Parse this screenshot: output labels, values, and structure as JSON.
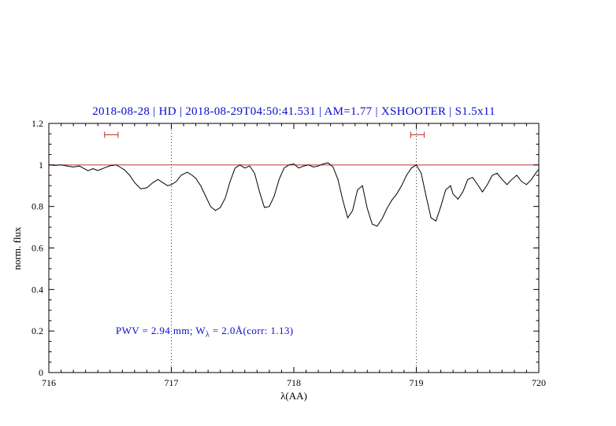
{
  "title": "2018-08-28 | HD | 2018-08-29T04:50:41.531 | AM=1.77 | XSHOOTER | S1.5x11",
  "annotation": {
    "prefix": "PWV = 2.94 mm; W",
    "sub": "λ",
    "suffix": " = 2.0Å(corr: 1.13)"
  },
  "axes": {
    "xlabel": "λ(AA)",
    "ylabel": "norm. flux"
  },
  "colors": {
    "title": "#0b0bcc",
    "annotation": "#0b0bcc",
    "axis": "#000000",
    "marker": "#c03030",
    "continuum": "#c03030",
    "spectrum": "#000000"
  },
  "chart_data": {
    "type": "line",
    "title": "2018-08-28 | HD | 2018-08-29T04:50:41.531 | AM=1.77 | XSHOOTER | S1.5x11",
    "xlabel": "λ(AA)",
    "ylabel": "norm. flux",
    "xlim": [
      716,
      720
    ],
    "ylim": [
      0,
      1.2
    ],
    "grid": false,
    "legend": "none",
    "x_ticks": [
      716,
      717,
      718,
      719,
      720
    ],
    "x_tick_labels": [
      "716",
      "717",
      "718",
      "719",
      "720"
    ],
    "x_minor_step": 0.1,
    "y_ticks": [
      0,
      0.2,
      0.4,
      0.6,
      0.8,
      1,
      1.2
    ],
    "y_tick_labels": [
      "0",
      "0.2",
      "0.4",
      "0.6",
      "0.8",
      "1",
      "1.2"
    ],
    "y_minor_step": 0.05,
    "dotted_vlines": [
      717,
      719
    ],
    "continuum_line": {
      "y": 1.0
    },
    "band_markers": [
      {
        "x_center": 716.51,
        "half_width": 0.055,
        "y": 1.145
      },
      {
        "x_center": 719.01,
        "half_width": 0.055,
        "y": 1.145
      }
    ],
    "series": [
      {
        "name": "telluric spectrum",
        "points": [
          [
            716.0,
            1.0
          ],
          [
            716.05,
            0.998
          ],
          [
            716.1,
            1.0
          ],
          [
            716.15,
            0.995
          ],
          [
            716.2,
            0.99
          ],
          [
            716.25,
            0.995
          ],
          [
            716.28,
            0.985
          ],
          [
            716.32,
            0.972
          ],
          [
            716.36,
            0.982
          ],
          [
            716.4,
            0.973
          ],
          [
            716.45,
            0.985
          ],
          [
            716.5,
            0.996
          ],
          [
            716.55,
            1.0
          ],
          [
            716.58,
            0.99
          ],
          [
            716.62,
            0.975
          ],
          [
            716.66,
            0.95
          ],
          [
            716.7,
            0.915
          ],
          [
            716.75,
            0.885
          ],
          [
            716.8,
            0.89
          ],
          [
            716.85,
            0.915
          ],
          [
            716.89,
            0.93
          ],
          [
            716.93,
            0.915
          ],
          [
            716.97,
            0.9
          ],
          [
            717.0,
            0.905
          ],
          [
            717.04,
            0.92
          ],
          [
            717.08,
            0.95
          ],
          [
            717.13,
            0.965
          ],
          [
            717.17,
            0.95
          ],
          [
            717.2,
            0.935
          ],
          [
            717.24,
            0.9
          ],
          [
            717.28,
            0.85
          ],
          [
            717.32,
            0.8
          ],
          [
            717.36,
            0.78
          ],
          [
            717.4,
            0.795
          ],
          [
            717.44,
            0.84
          ],
          [
            717.48,
            0.92
          ],
          [
            717.52,
            0.985
          ],
          [
            717.56,
            1.0
          ],
          [
            717.6,
            0.985
          ],
          [
            717.64,
            0.995
          ],
          [
            717.68,
            0.96
          ],
          [
            717.72,
            0.87
          ],
          [
            717.76,
            0.795
          ],
          [
            717.8,
            0.8
          ],
          [
            717.84,
            0.85
          ],
          [
            717.88,
            0.93
          ],
          [
            717.92,
            0.985
          ],
          [
            717.96,
            1.0
          ],
          [
            718.0,
            1.005
          ],
          [
            718.04,
            0.985
          ],
          [
            718.08,
            0.995
          ],
          [
            718.12,
            1.0
          ],
          [
            718.16,
            0.99
          ],
          [
            718.2,
            0.995
          ],
          [
            718.24,
            1.005
          ],
          [
            718.28,
            1.01
          ],
          [
            718.32,
            0.99
          ],
          [
            718.36,
            0.93
          ],
          [
            718.4,
            0.83
          ],
          [
            718.44,
            0.745
          ],
          [
            718.48,
            0.78
          ],
          [
            718.52,
            0.88
          ],
          [
            718.56,
            0.9
          ],
          [
            718.6,
            0.79
          ],
          [
            718.64,
            0.715
          ],
          [
            718.68,
            0.705
          ],
          [
            718.72,
            0.74
          ],
          [
            718.76,
            0.79
          ],
          [
            718.8,
            0.83
          ],
          [
            718.84,
            0.86
          ],
          [
            718.88,
            0.9
          ],
          [
            718.92,
            0.95
          ],
          [
            718.96,
            0.985
          ],
          [
            719.0,
            1.0
          ],
          [
            719.04,
            0.96
          ],
          [
            719.08,
            0.85
          ],
          [
            719.12,
            0.745
          ],
          [
            719.16,
            0.73
          ],
          [
            719.2,
            0.8
          ],
          [
            719.24,
            0.88
          ],
          [
            719.28,
            0.9
          ],
          [
            719.3,
            0.86
          ],
          [
            719.34,
            0.835
          ],
          [
            719.38,
            0.87
          ],
          [
            719.42,
            0.93
          ],
          [
            719.46,
            0.94
          ],
          [
            719.5,
            0.905
          ],
          [
            719.54,
            0.87
          ],
          [
            719.58,
            0.905
          ],
          [
            719.62,
            0.95
          ],
          [
            719.66,
            0.96
          ],
          [
            719.7,
            0.93
          ],
          [
            719.74,
            0.905
          ],
          [
            719.78,
            0.93
          ],
          [
            719.82,
            0.95
          ],
          [
            719.86,
            0.92
          ],
          [
            719.9,
            0.905
          ],
          [
            719.94,
            0.93
          ],
          [
            719.98,
            0.965
          ],
          [
            720.0,
            0.978
          ]
        ]
      }
    ]
  }
}
